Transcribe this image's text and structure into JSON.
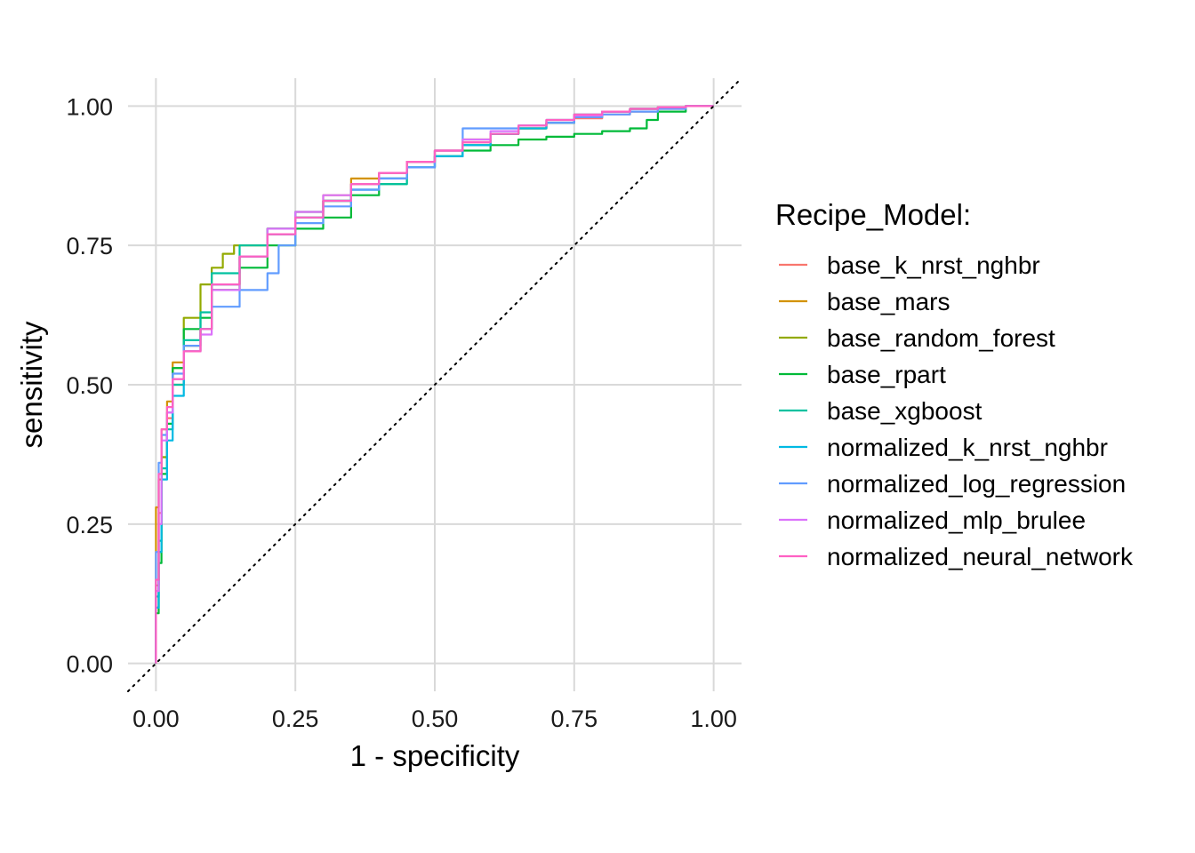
{
  "chart_data": {
    "type": "line",
    "title": "",
    "xlabel": "1 - specificity",
    "ylabel": "sensitivity",
    "xlim": [
      -0.05,
      1.05
    ],
    "ylim": [
      -0.05,
      1.05
    ],
    "x_ticks": [
      "0.00",
      "0.25",
      "0.50",
      "0.75",
      "1.00"
    ],
    "y_ticks": [
      "0.00",
      "0.25",
      "0.50",
      "0.75",
      "1.00"
    ],
    "grid": true,
    "reference_line": {
      "style": "dotted",
      "color": "#000000",
      "from": [
        -0.05,
        -0.05
      ],
      "to": [
        1.05,
        1.05
      ]
    },
    "legend": {
      "title": "Recipe_Model:",
      "placement": "right"
    },
    "series": [
      {
        "name": "base_k_nrst_nghbr",
        "color": "#F8766D",
        "x": [
          0,
          0.005,
          0.01,
          0.02,
          0.03,
          0.05,
          0.08,
          0.1,
          0.15,
          0.2,
          0.25,
          0.3,
          0.35,
          0.4,
          0.45,
          0.5,
          0.55,
          0.6,
          0.65,
          0.7,
          0.75,
          0.8,
          0.85,
          0.9,
          0.95,
          1.0
        ],
        "y": [
          0,
          0.14,
          0.27,
          0.37,
          0.44,
          0.5,
          0.56,
          0.6,
          0.68,
          0.73,
          0.77,
          0.8,
          0.83,
          0.86,
          0.88,
          0.9,
          0.92,
          0.935,
          0.95,
          0.96,
          0.97,
          0.978,
          0.985,
          0.99,
          0.995,
          1.0
        ]
      },
      {
        "name": "base_mars",
        "color": "#D39200",
        "x": [
          0,
          0.005,
          0.01,
          0.02,
          0.03,
          0.05,
          0.08,
          0.1,
          0.15,
          0.2,
          0.25,
          0.3,
          0.35,
          0.4,
          0.45,
          0.5,
          0.55,
          0.6,
          0.65,
          0.7,
          0.75,
          0.8,
          0.85,
          0.9,
          0.95,
          1.0
        ],
        "y": [
          0,
          0.28,
          0.33,
          0.42,
          0.47,
          0.54,
          0.57,
          0.6,
          0.67,
          0.73,
          0.78,
          0.81,
          0.84,
          0.87,
          0.88,
          0.9,
          0.92,
          0.94,
          0.95,
          0.96,
          0.97,
          0.98,
          0.99,
          0.995,
          0.998,
          1.0
        ]
      },
      {
        "name": "base_random_forest",
        "color": "#93AA00",
        "x": [
          0,
          0.005,
          0.01,
          0.02,
          0.03,
          0.05,
          0.08,
          0.1,
          0.12,
          0.14,
          0.2,
          0.25,
          0.3,
          0.35,
          0.4,
          0.45,
          0.5,
          0.55,
          0.6,
          0.65,
          0.7,
          0.75,
          0.8,
          0.85,
          0.9,
          0.95,
          1.0
        ],
        "y": [
          0,
          0.1,
          0.2,
          0.37,
          0.45,
          0.53,
          0.62,
          0.68,
          0.71,
          0.735,
          0.75,
          0.78,
          0.8,
          0.83,
          0.86,
          0.87,
          0.9,
          0.91,
          0.93,
          0.95,
          0.96,
          0.97,
          0.98,
          0.99,
          0.995,
          0.998,
          1.0
        ]
      },
      {
        "name": "base_rpart",
        "color": "#00BA38",
        "x": [
          0,
          0.005,
          0.01,
          0.02,
          0.03,
          0.05,
          0.08,
          0.1,
          0.15,
          0.2,
          0.25,
          0.3,
          0.35,
          0.4,
          0.45,
          0.5,
          0.55,
          0.6,
          0.65,
          0.7,
          0.75,
          0.8,
          0.85,
          0.88,
          0.9,
          0.95,
          1.0
        ],
        "y": [
          0,
          0.09,
          0.18,
          0.34,
          0.43,
          0.53,
          0.6,
          0.62,
          0.67,
          0.71,
          0.75,
          0.78,
          0.8,
          0.84,
          0.86,
          0.89,
          0.91,
          0.92,
          0.93,
          0.94,
          0.945,
          0.95,
          0.955,
          0.96,
          0.975,
          0.99,
          1.0
        ]
      },
      {
        "name": "base_xgboost",
        "color": "#00C19F",
        "x": [
          0,
          0.005,
          0.01,
          0.02,
          0.03,
          0.05,
          0.08,
          0.1,
          0.15,
          0.2,
          0.25,
          0.3,
          0.35,
          0.4,
          0.45,
          0.5,
          0.55,
          0.6,
          0.65,
          0.7,
          0.75,
          0.8,
          0.85,
          0.9,
          0.95,
          1.0
        ],
        "y": [
          0,
          0.12,
          0.22,
          0.35,
          0.42,
          0.5,
          0.58,
          0.63,
          0.7,
          0.75,
          0.78,
          0.81,
          0.83,
          0.85,
          0.86,
          0.89,
          0.91,
          0.93,
          0.95,
          0.965,
          0.975,
          0.985,
          0.99,
          0.995,
          0.998,
          1.0
        ]
      },
      {
        "name": "normalized_k_nrst_nghbr",
        "color": "#00B9E3",
        "x": [
          0,
          0.005,
          0.01,
          0.02,
          0.03,
          0.05,
          0.08,
          0.1,
          0.15,
          0.2,
          0.25,
          0.3,
          0.35,
          0.4,
          0.45,
          0.5,
          0.55,
          0.6,
          0.65,
          0.7,
          0.75,
          0.8,
          0.85,
          0.9,
          0.95,
          1.0
        ],
        "y": [
          0,
          0.1,
          0.2,
          0.33,
          0.4,
          0.48,
          0.56,
          0.6,
          0.68,
          0.73,
          0.77,
          0.8,
          0.83,
          0.85,
          0.87,
          0.89,
          0.91,
          0.93,
          0.95,
          0.96,
          0.97,
          0.98,
          0.99,
          0.995,
          0.998,
          1.0
        ]
      },
      {
        "name": "normalized_log_regression",
        "color": "#619CFF",
        "x": [
          0,
          0.005,
          0.01,
          0.02,
          0.03,
          0.05,
          0.08,
          0.1,
          0.15,
          0.2,
          0.22,
          0.25,
          0.3,
          0.35,
          0.4,
          0.45,
          0.5,
          0.55,
          0.6,
          0.65,
          0.7,
          0.75,
          0.8,
          0.85,
          0.9,
          0.95,
          1.0
        ],
        "y": [
          0,
          0.2,
          0.36,
          0.41,
          0.45,
          0.52,
          0.57,
          0.6,
          0.64,
          0.67,
          0.7,
          0.75,
          0.79,
          0.82,
          0.85,
          0.87,
          0.89,
          0.92,
          0.96,
          0.96,
          0.965,
          0.97,
          0.98,
          0.985,
          0.99,
          0.995,
          1.0
        ]
      },
      {
        "name": "normalized_mlp_brulee",
        "color": "#DB72FB",
        "x": [
          0,
          0.005,
          0.01,
          0.02,
          0.03,
          0.05,
          0.08,
          0.1,
          0.15,
          0.2,
          0.25,
          0.3,
          0.35,
          0.4,
          0.45,
          0.5,
          0.55,
          0.6,
          0.65,
          0.7,
          0.75,
          0.8,
          0.85,
          0.9,
          0.95,
          1.0
        ],
        "y": [
          0,
          0.13,
          0.25,
          0.4,
          0.45,
          0.51,
          0.56,
          0.59,
          0.67,
          0.73,
          0.78,
          0.81,
          0.84,
          0.86,
          0.88,
          0.9,
          0.92,
          0.94,
          0.955,
          0.965,
          0.975,
          0.983,
          0.99,
          0.995,
          0.998,
          1.0
        ]
      },
      {
        "name": "normalized_neural_network",
        "color": "#FF61C3",
        "x": [
          0,
          0.005,
          0.01,
          0.02,
          0.03,
          0.05,
          0.08,
          0.1,
          0.15,
          0.2,
          0.25,
          0.3,
          0.35,
          0.4,
          0.45,
          0.5,
          0.55,
          0.6,
          0.65,
          0.7,
          0.75,
          0.8,
          0.85,
          0.9,
          0.95,
          1.0
        ],
        "y": [
          0,
          0.15,
          0.34,
          0.42,
          0.46,
          0.51,
          0.56,
          0.6,
          0.68,
          0.73,
          0.77,
          0.8,
          0.83,
          0.86,
          0.88,
          0.9,
          0.92,
          0.935,
          0.95,
          0.965,
          0.975,
          0.985,
          0.99,
          0.995,
          0.998,
          1.0
        ]
      }
    ]
  }
}
